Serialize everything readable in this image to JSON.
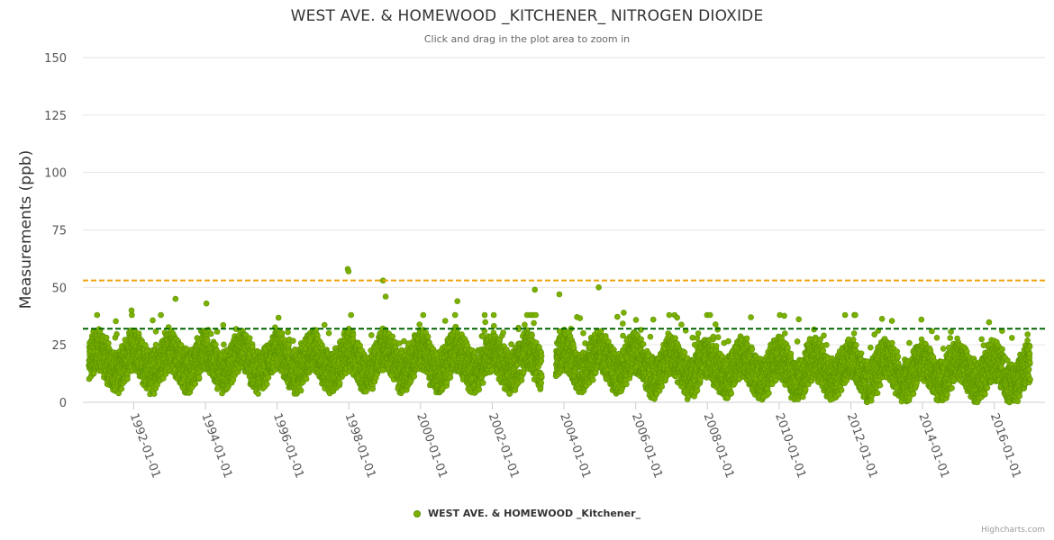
{
  "chart_data": {
    "type": "scatter",
    "title": "WEST AVE. & HOMEWOOD _KITCHENER_ NITROGEN DIOXIDE",
    "subtitle": "Click and drag in the plot area to zoom in",
    "ylabel": "Measurements (ppb)",
    "ylim": [
      0,
      150
    ],
    "yticks": [
      0,
      25,
      50,
      75,
      100,
      125,
      150
    ],
    "xlim": [
      "1990-08-01",
      "2017-06-01"
    ],
    "xticks": [
      "1992-01-01",
      "1994-01-01",
      "1996-01-01",
      "1998-01-01",
      "2000-01-01",
      "2002-01-01",
      "2004-01-01",
      "2006-01-01",
      "2008-01-01",
      "2010-01-01",
      "2012-01-01",
      "2014-01-01",
      "2016-01-01"
    ],
    "grid": true,
    "legend_position": "bottom-center",
    "series": [
      {
        "name": "WEST AVE. & HOMEWOOD _Kitchener_",
        "color": "#7cb000",
        "marker": "circle",
        "daily_points": "dense daily measurements from 1990-10 to 2017-01, mostly 0–35 ppb, seasonal winter peaks",
        "range_start": "1990-10-01",
        "range_end": "2017-01-01",
        "gaps": [
          [
            "2003-05-20",
            "2003-10-10"
          ]
        ],
        "notable_values": [
          {
            "x": "1997-12-20",
            "y": 58
          },
          {
            "x": "1997-12-28",
            "y": 57
          },
          {
            "x": "1998-12-15",
            "y": 53
          },
          {
            "x": "1999-01-10",
            "y": 46
          },
          {
            "x": "2004-12-20",
            "y": 50
          },
          {
            "x": "2003-03-10",
            "y": 49
          },
          {
            "x": "2003-11-15",
            "y": 47
          },
          {
            "x": "1993-03-01",
            "y": 45
          },
          {
            "x": "2001-01-10",
            "y": 44
          },
          {
            "x": "1994-01-10",
            "y": 43
          },
          {
            "x": "1991-12-10",
            "y": 40
          },
          {
            "x": "2005-09-01",
            "y": 39
          },
          {
            "x": "2013-12-20",
            "y": 36
          },
          {
            "x": "2010-03-01",
            "y": 30
          }
        ]
      }
    ],
    "reference_lines": [
      {
        "y": 53,
        "color": "#f0a30a",
        "style": "dashed"
      },
      {
        "y": 32,
        "color": "#006400",
        "style": "dashed"
      }
    ]
  },
  "credits": "Highcharts.com"
}
